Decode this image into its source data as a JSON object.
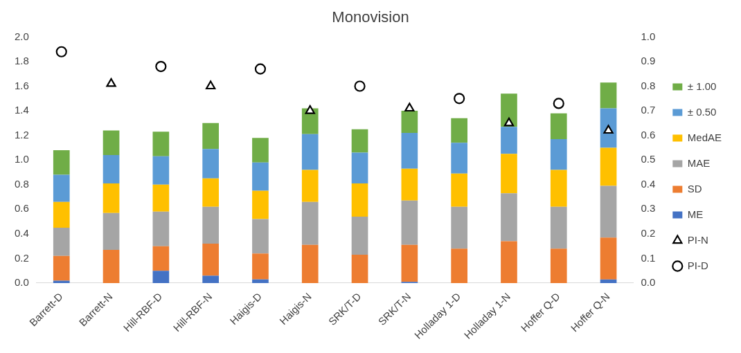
{
  "chart_data": {
    "type": "bar",
    "title": "Monovision",
    "stacked": true,
    "legend": "right",
    "grid": false,
    "categories": [
      "Barrett-D",
      "Barrett-N",
      "Hill-RBF-D",
      "Hill-RBF-N",
      "Haigis-D",
      "Haigis-N",
      "SRK/T-D",
      "SRK/T-N",
      "Holladay 1-D",
      "Holladay 1-N",
      "Hoffer Q-D",
      "Hoffer Q-N"
    ],
    "ylim": [
      0,
      2
    ],
    "yticks": [
      {
        "value": 0,
        "label": "0.0"
      },
      {
        "value": 0.2,
        "label": "0.2"
      },
      {
        "value": 0.4,
        "label": "0.4"
      },
      {
        "value": 0.6,
        "label": "0.6"
      },
      {
        "value": 0.8,
        "label": "0.8"
      },
      {
        "value": 1,
        "label": "1.0"
      },
      {
        "value": 1.2,
        "label": "1.2"
      },
      {
        "value": 1.4,
        "label": "1.4"
      },
      {
        "value": 1.6,
        "label": "1.6"
      },
      {
        "value": 1.8,
        "label": "1.8"
      },
      {
        "value": 2,
        "label": "2.0"
      }
    ],
    "y2lim": [
      0,
      1
    ],
    "y2ticks": [
      {
        "value": 0,
        "label": "0.0"
      },
      {
        "value": 0.1,
        "label": "0.1"
      },
      {
        "value": 0.2,
        "label": "0.2"
      },
      {
        "value": 0.3,
        "label": "0.3"
      },
      {
        "value": 0.4,
        "label": "0.4"
      },
      {
        "value": 0.5,
        "label": "0.5"
      },
      {
        "value": 0.6,
        "label": "0.6"
      },
      {
        "value": 0.7,
        "label": "0.7"
      },
      {
        "value": 0.8,
        "label": "0.8"
      },
      {
        "value": 0.9,
        "label": "0.9"
      },
      {
        "value": 1,
        "label": "1.0"
      }
    ],
    "series": [
      {
        "name": "ME",
        "color": "#4472c4",
        "values": [
          0.02,
          0,
          0.1,
          0.06,
          0.03,
          0,
          0,
          0.01,
          0,
          0,
          0,
          0.03
        ]
      },
      {
        "name": "SD",
        "color": "#ed7d31",
        "values": [
          0.2,
          0.27,
          0.2,
          0.26,
          0.21,
          0.31,
          0.23,
          0.3,
          0.28,
          0.34,
          0.28,
          0.34
        ]
      },
      {
        "name": "MAE",
        "color": "#a5a5a5",
        "values": [
          0.23,
          0.3,
          0.28,
          0.3,
          0.28,
          0.35,
          0.31,
          0.36,
          0.34,
          0.39,
          0.34,
          0.42
        ]
      },
      {
        "name": "MedAE",
        "color": "#ffc000",
        "values": [
          0.21,
          0.24,
          0.22,
          0.23,
          0.23,
          0.26,
          0.27,
          0.26,
          0.27,
          0.32,
          0.3,
          0.31
        ]
      },
      {
        "name": "± 0.50",
        "color": "#5b9bd5",
        "values": [
          0.22,
          0.23,
          0.23,
          0.24,
          0.23,
          0.29,
          0.25,
          0.29,
          0.25,
          0.22,
          0.25,
          0.32
        ]
      },
      {
        "name": "± 1.00",
        "color": "#70ad47",
        "values": [
          0.2,
          0.2,
          0.2,
          0.21,
          0.2,
          0.21,
          0.19,
          0.18,
          0.2,
          0.27,
          0.21,
          0.21
        ]
      },
      {
        "name": "PI-D",
        "type": "scatter",
        "axis": "y2",
        "marker": "circle",
        "color": "#000000",
        "x": [
          "Barrett-D",
          "Hill-RBF-D",
          "Haigis-D",
          "SRK/T-D",
          "Holladay 1-D",
          "Hoffer Q-D"
        ],
        "values": [
          0.94,
          0.88,
          0.87,
          0.8,
          0.75,
          0.73
        ]
      },
      {
        "name": "PI-N",
        "type": "scatter",
        "axis": "y2",
        "marker": "triangle",
        "color": "#000000",
        "x": [
          "Barrett-N",
          "Hill-RBF-N",
          "Haigis-N",
          "SRK/T-N",
          "Holladay 1-N",
          "Hoffer Q-N"
        ],
        "values": [
          0.81,
          0.8,
          0.7,
          0.71,
          0.65,
          0.62
        ]
      }
    ]
  }
}
